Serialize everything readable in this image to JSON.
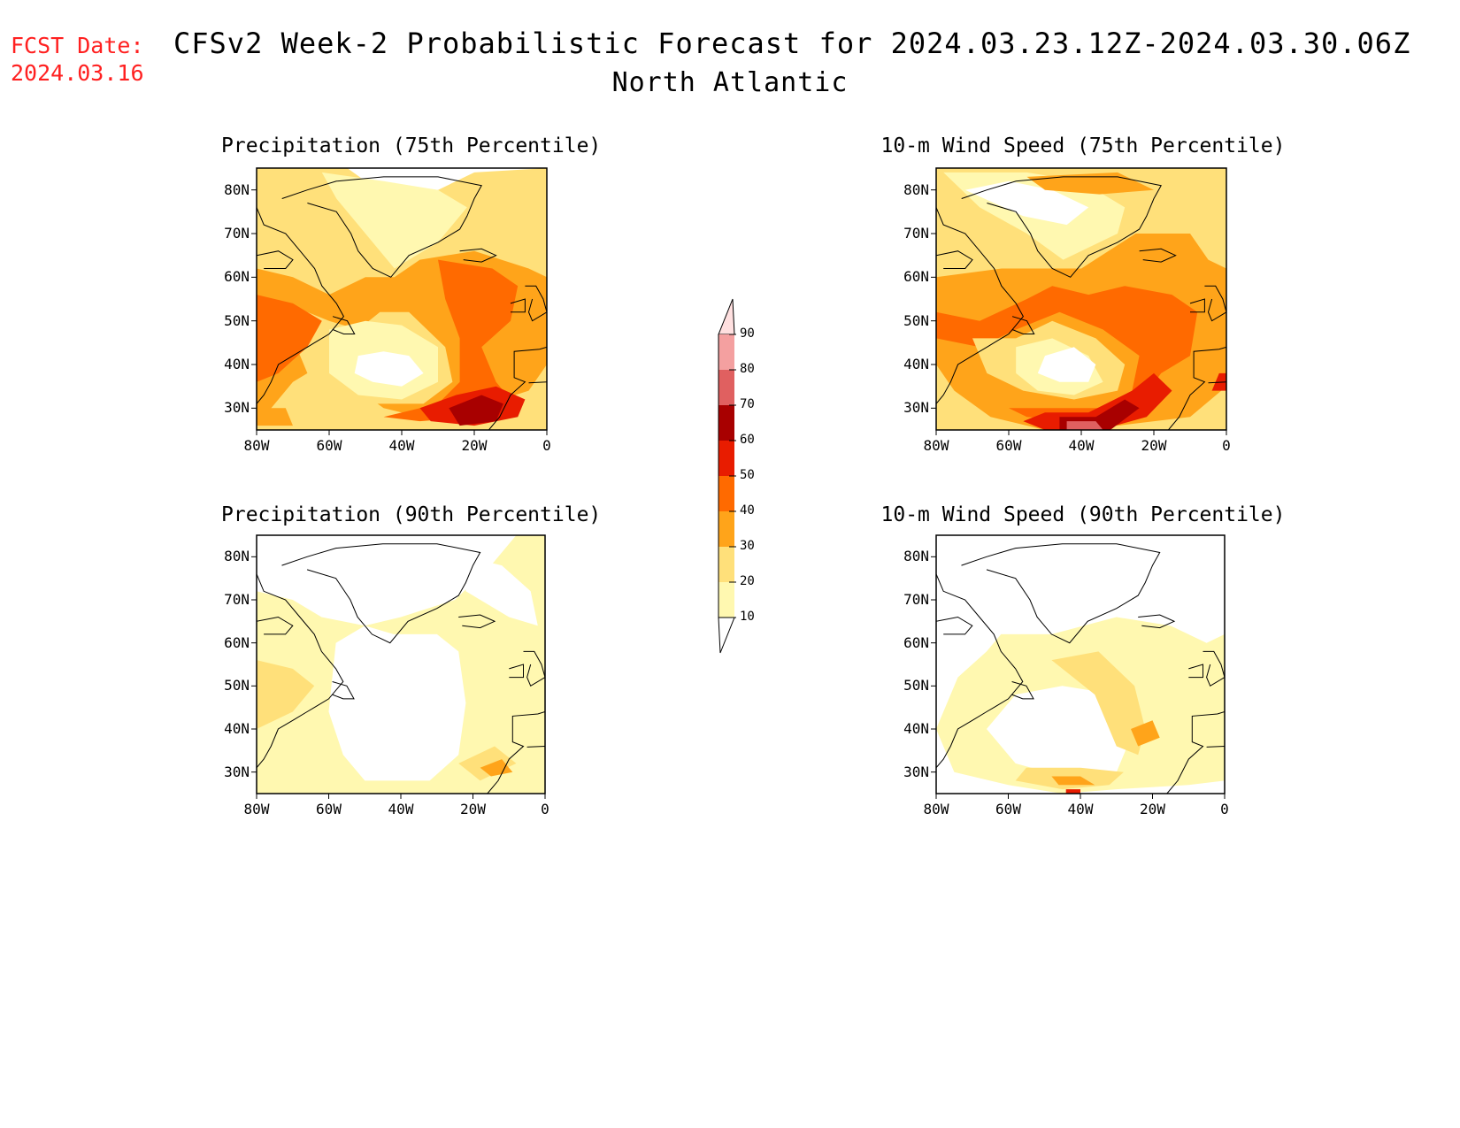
{
  "header": {
    "fcst_date_label": "FCST Date:",
    "fcst_date_value": "2024.03.16",
    "title_line1": "CFSv2 Week-2 Probabilistic Forecast for 2024.03.23.12Z-2024.03.30.06Z",
    "title_line2": "North Atlantic"
  },
  "colors": {
    "fcst_date": "#ff2020",
    "levels": [
      "#ffffff",
      "#fff8b0",
      "#ffe07a",
      "#ffa41a",
      "#ff6a00",
      "#e81c00",
      "#a80000",
      "#e06060",
      "#f4a0a0",
      "#ffe0e0"
    ]
  },
  "colorbar": {
    "levels": [
      10,
      20,
      30,
      40,
      50,
      60,
      70,
      80,
      90
    ],
    "labels": [
      "10",
      "20",
      "30",
      "40",
      "50",
      "60",
      "70",
      "80",
      "90"
    ]
  },
  "panels": [
    {
      "id": "p75",
      "title": "Precipitation (75th Percentile)"
    },
    {
      "id": "w75",
      "title": "10-m Wind Speed (75th Percentile)"
    },
    {
      "id": "p90",
      "title": "Precipitation (90th Percentile)"
    },
    {
      "id": "w90",
      "title": "10-m Wind Speed (90th Percentile)"
    }
  ],
  "axes": {
    "lat_labels": [
      "80N",
      "70N",
      "60N",
      "50N",
      "40N",
      "30N"
    ],
    "lat_values": [
      80,
      70,
      60,
      50,
      40,
      30
    ],
    "lon_labels": [
      "80W",
      "60W",
      "40W",
      "20W",
      "0"
    ],
    "lon_values": [
      -80,
      -60,
      -40,
      -20,
      0
    ],
    "lat_range": [
      25,
      85
    ],
    "lon_range": [
      -80,
      0
    ]
  }
}
